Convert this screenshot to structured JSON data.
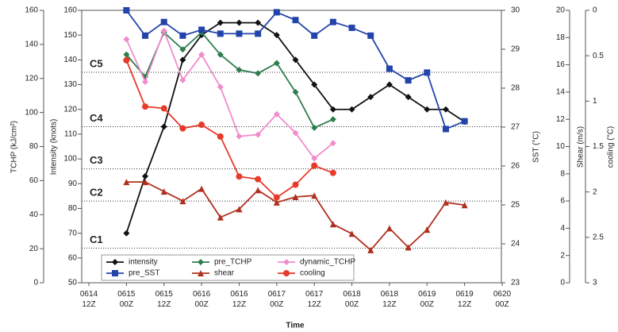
{
  "chart_data": {
    "type": "line",
    "x_label": "Time",
    "categories": [
      "0614 12Z",
      null,
      "0615 00Z",
      null,
      "0615 12Z",
      null,
      "0616 00Z",
      null,
      "0616 12Z",
      null,
      "0617 00Z",
      null,
      "0617 12Z",
      null,
      "0618 00Z",
      null,
      "0618 12Z",
      null,
      "0619 00Z",
      null,
      "0619 12Z",
      null,
      "0620 00Z"
    ],
    "axes": [
      {
        "label": "TCHP (kJ/cm²)",
        "lim": [
          0,
          160
        ],
        "ticks": [
          0,
          20,
          40,
          60,
          80,
          100,
          120,
          140,
          160
        ],
        "reversed": false
      },
      {
        "label": "Intensity (knots)",
        "lim": [
          50,
          160
        ],
        "ticks": [
          50,
          60,
          70,
          80,
          90,
          100,
          110,
          120,
          130,
          140,
          150,
          160
        ],
        "reversed": false
      },
      {
        "label": "SST (°C)",
        "lim": [
          23,
          30
        ],
        "ticks": [
          23,
          24,
          25,
          26,
          27,
          28,
          29,
          30
        ],
        "reversed": false
      },
      {
        "label": "Shear (m/s)",
        "lim": [
          0,
          20
        ],
        "ticks": [
          0,
          2,
          4,
          6,
          8,
          10,
          12,
          14,
          16,
          18,
          20
        ],
        "reversed": false
      },
      {
        "label": "cooling (°C)",
        "lim": [
          0,
          3
        ],
        "ticks": [
          0,
          0.5,
          1,
          1.5,
          2,
          2.5,
          3
        ],
        "reversed": true
      }
    ],
    "thresholds": [
      {
        "label": "C1",
        "value": 64
      },
      {
        "label": "C2",
        "value": 83
      },
      {
        "label": "C3",
        "value": 96
      },
      {
        "label": "C4",
        "value": 113
      },
      {
        "label": "C5",
        "value": 135
      }
    ],
    "series": [
      {
        "name": "intensity",
        "color": "#111111",
        "marker": "diamond",
        "axis": 1,
        "values": [
          null,
          null,
          70,
          93,
          113,
          140,
          150,
          155,
          155,
          155,
          150,
          140,
          130,
          120,
          120,
          125,
          130,
          125,
          120,
          120,
          115,
          null,
          null
        ]
      },
      {
        "name": "pre_TCHP",
        "color": "#2e7d4f",
        "marker": "diamond",
        "axis": 0,
        "values": [
          null,
          null,
          134,
          121,
          147,
          137,
          147,
          134,
          125,
          123,
          129,
          112,
          91,
          96,
          null,
          null,
          null,
          null,
          null,
          null,
          null,
          null,
          null
        ]
      },
      {
        "name": "dynamic_TCHP",
        "color": "#f08ccc",
        "marker": "diamond",
        "axis": 0,
        "values": [
          null,
          null,
          143,
          118,
          148,
          119,
          134,
          115,
          86,
          87,
          99,
          88,
          73,
          82,
          null,
          null,
          null,
          null,
          null,
          null,
          null,
          null,
          null
        ]
      },
      {
        "name": "pre_SST",
        "color": "#2244aa",
        "marker": "square",
        "axis": 2,
        "values": [
          null,
          null,
          30,
          29.35,
          29.7,
          29.35,
          29.5,
          29.4,
          29.4,
          29.4,
          29.95,
          29.75,
          29.35,
          29.7,
          29.55,
          29.35,
          28.5,
          28.2,
          28.4,
          26.95,
          27.15,
          null,
          null
        ]
      },
      {
        "name": "shear",
        "color": "#b03020",
        "marker": "triangle",
        "axis": 3,
        "values": [
          null,
          null,
          7.4,
          7.4,
          6.7,
          6.0,
          6.9,
          4.8,
          5.4,
          6.8,
          5.9,
          6.3,
          6.4,
          4.3,
          3.6,
          2.4,
          4.0,
          2.6,
          3.9,
          5.9,
          5.7,
          null,
          null
        ]
      },
      {
        "name": "cooling",
        "color": "#e83a2a",
        "marker": "circle",
        "axis": 4,
        "values": [
          null,
          null,
          0.55,
          1.06,
          1.08,
          1.3,
          1.26,
          1.39,
          1.83,
          1.86,
          2.06,
          1.92,
          1.71,
          1.79,
          null,
          null,
          null,
          null,
          null,
          null,
          null,
          null,
          null
        ]
      }
    ]
  }
}
